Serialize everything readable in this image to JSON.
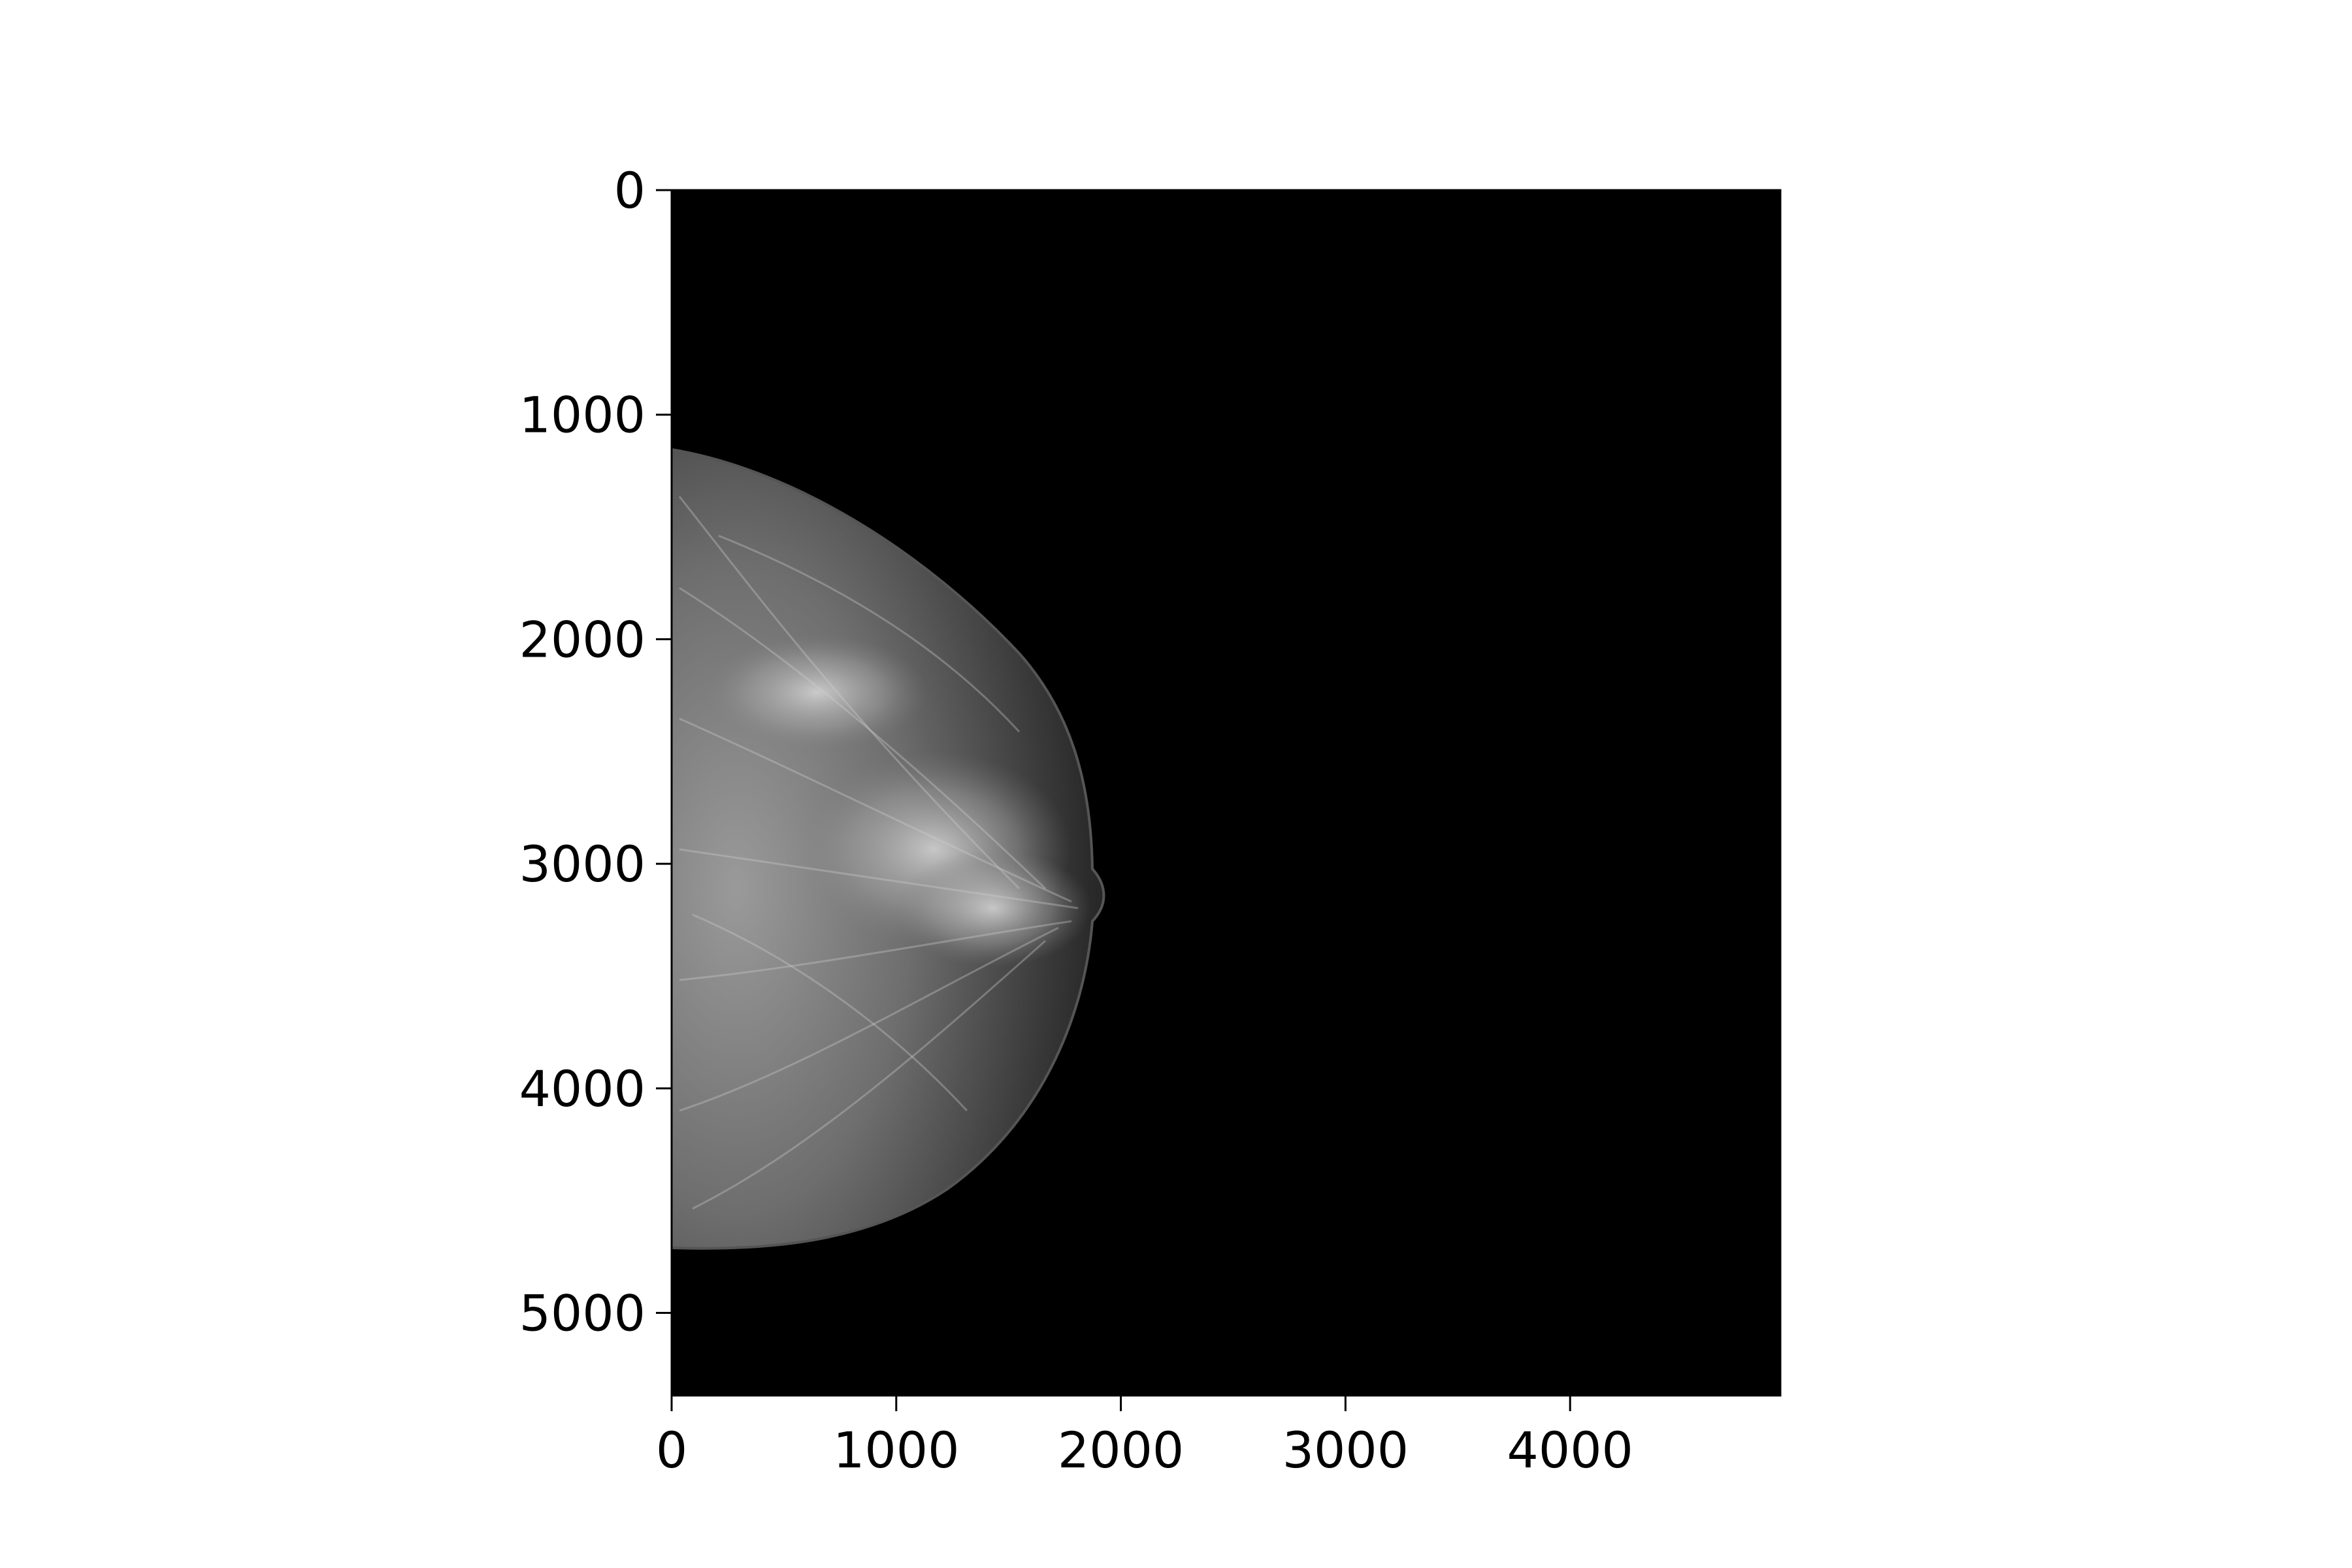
{
  "image": {
    "description_type": "mammogram",
    "background_color": "#000000",
    "tissue_color": "#bdbdbd",
    "side": "left-edge"
  },
  "axes": {
    "x_ticks": [
      "0",
      "1000",
      "2000",
      "3000",
      "4000"
    ],
    "y_ticks": [
      "0",
      "1000",
      "2000",
      "3000",
      "4000",
      "5000"
    ],
    "x_range": [
      0,
      4936
    ],
    "y_range": [
      5368,
      0
    ]
  }
}
